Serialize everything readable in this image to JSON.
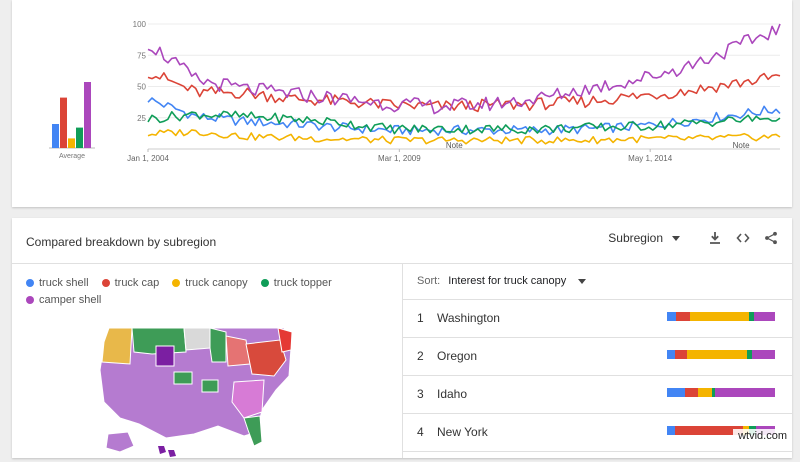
{
  "colors": {
    "truck_shell": "#4285f4",
    "truck_cap": "#db4437",
    "truck_canopy": "#f4b400",
    "truck_topper": "#0f9d58",
    "camper_shell": "#ab47bc"
  },
  "chart_data": [
    {
      "type": "bar",
      "categories": [
        "truck shell",
        "truck cap",
        "truck canopy",
        "truck topper",
        "camper shell"
      ],
      "values": [
        20,
        42,
        8,
        17,
        55
      ],
      "xlabel": "Average",
      "ylim": [
        0,
        100
      ]
    },
    {
      "type": "line",
      "x": [
        2004,
        2005,
        2006,
        2007,
        2008,
        2009,
        2010,
        2011,
        2012,
        2013,
        2014,
        2015,
        2016,
        2017
      ],
      "x_tick_labels": [
        "Jan 1, 2004",
        "Mar 1, 2009",
        "May 1, 2014"
      ],
      "y_tick_labels": [
        "100",
        "75",
        "50",
        "25"
      ],
      "ylim": [
        0,
        100
      ],
      "annotations": [
        "Note",
        "Note"
      ],
      "grid": true,
      "series": [
        {
          "name": "truck shell",
          "values": [
            40,
            26,
            22,
            20,
            17,
            15,
            15,
            15,
            15,
            16,
            18,
            22,
            27,
            32
          ]
        },
        {
          "name": "truck cap",
          "values": [
            62,
            45,
            45,
            40,
            38,
            35,
            34,
            35,
            36,
            38,
            42,
            46,
            52,
            58
          ]
        },
        {
          "name": "truck canopy",
          "values": [
            12,
            14,
            10,
            9,
            8,
            7,
            7,
            7,
            7,
            7,
            8,
            8,
            9,
            10
          ]
        },
        {
          "name": "truck topper",
          "values": [
            24,
            28,
            26,
            24,
            21,
            16,
            16,
            16,
            16,
            17,
            18,
            20,
            23,
            25
          ]
        },
        {
          "name": "camper shell",
          "values": [
            85,
            55,
            48,
            44,
            40,
            36,
            34,
            36,
            40,
            48,
            55,
            65,
            80,
            97
          ]
        }
      ]
    }
  ],
  "breakdown": {
    "title": "Compared breakdown by subregion",
    "resolution_label": "Subregion",
    "sort_label": "Sort:",
    "sort_value": "Interest for truck canopy",
    "legend": [
      "truck shell",
      "truck cap",
      "truck canopy",
      "truck topper",
      "camper shell"
    ],
    "rows": [
      {
        "rank": "1",
        "name": "Washington",
        "shares": [
          8,
          13,
          53,
          5,
          19
        ]
      },
      {
        "rank": "2",
        "name": "Oregon",
        "shares": [
          8,
          13,
          62,
          5,
          24
        ]
      },
      {
        "rank": "3",
        "name": "Idaho",
        "shares": [
          17,
          12,
          13,
          2,
          56
        ]
      },
      {
        "rank": "4",
        "name": "New York",
        "shares": [
          7,
          63,
          6,
          6,
          18
        ]
      }
    ]
  },
  "watermark": "wtvid.com"
}
